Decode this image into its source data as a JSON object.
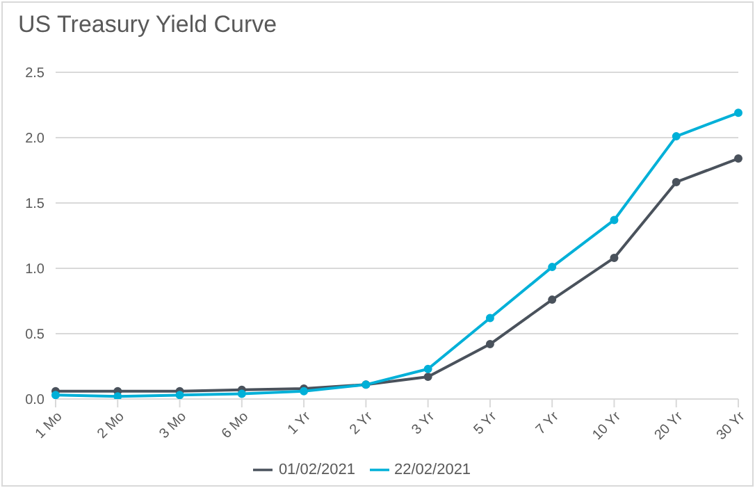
{
  "chart_data": {
    "type": "line",
    "title": "US Treasury Yield Curve",
    "categories": [
      "1 Mo",
      "2 Mo",
      "3 Mo",
      "6 Mo",
      "1 Yr",
      "2 Yr",
      "3 Yr",
      "5 Yr",
      "7 Yr",
      "10 Yr",
      "20 Yr",
      "30 Yr"
    ],
    "series": [
      {
        "name": "01/02/2021",
        "color": "#4a525c",
        "values": [
          0.06,
          0.06,
          0.06,
          0.07,
          0.08,
          0.11,
          0.17,
          0.42,
          0.76,
          1.08,
          1.66,
          1.84
        ]
      },
      {
        "name": "22/02/2021",
        "color": "#00b0d8",
        "values": [
          0.03,
          0.02,
          0.03,
          0.04,
          0.06,
          0.11,
          0.23,
          0.62,
          1.01,
          1.37,
          2.01,
          2.19
        ]
      }
    ],
    "ylim": [
      0,
      2.5
    ],
    "yticks": [
      {
        "value": 0,
        "label": "0.0"
      },
      {
        "value": 0.5,
        "label": "0.5"
      },
      {
        "value": 1,
        "label": "1.0"
      },
      {
        "value": 1.5,
        "label": "1.5"
      },
      {
        "value": 2,
        "label": "2.0"
      },
      {
        "value": 2.5,
        "label": "2.5"
      }
    ],
    "grid": "y",
    "legend": "bottom",
    "marker": "circle",
    "line_style": "solid"
  }
}
